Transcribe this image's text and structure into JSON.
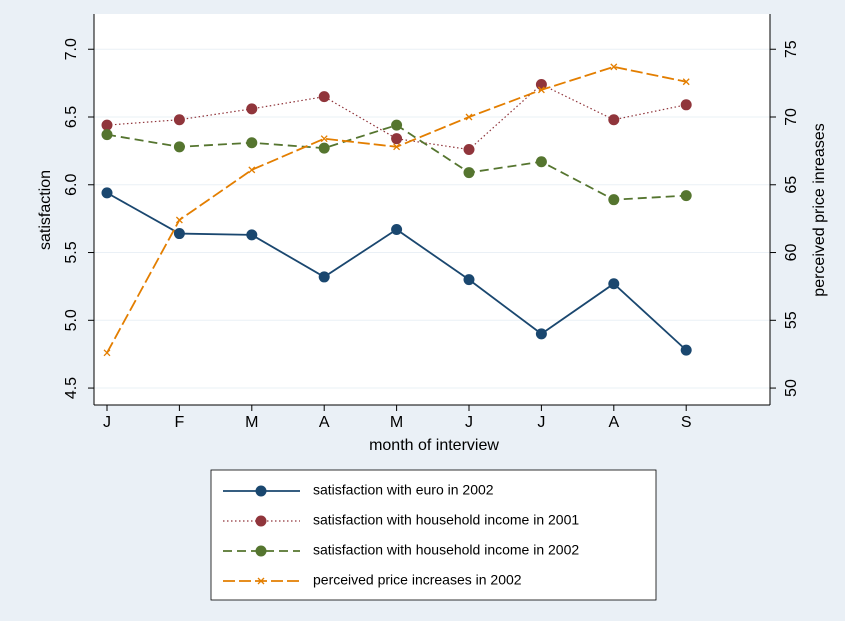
{
  "chart_data": {
    "type": "line",
    "xlabel": "month of interview",
    "ylabel": "satisfaction",
    "y2label": "perceived price inreases",
    "categories": [
      "J",
      "F",
      "M",
      "A",
      "M",
      "J",
      "J",
      "A",
      "S"
    ],
    "ylim": [
      4.375,
      7.26
    ],
    "yticks": [
      {
        "value": 4.5,
        "label": "4.5"
      },
      {
        "value": 5,
        "label": "5.0"
      },
      {
        "value": 5.5,
        "label": "5.5"
      },
      {
        "value": 6,
        "label": "6.0"
      },
      {
        "value": 6.5,
        "label": "6.5"
      },
      {
        "value": 7,
        "label": "7.0"
      }
    ],
    "y2lim": [
      48.75,
      77.6
    ],
    "y2ticks": [
      50,
      55,
      60,
      65,
      70,
      75
    ],
    "grid": true,
    "series": [
      {
        "name": "satisfaction with euro in 2002",
        "color": "#1a476f",
        "dash": "solid",
        "marker": "circle",
        "values": [
          5.94,
          5.64,
          5.63,
          5.32,
          5.67,
          5.3,
          4.9,
          5.27,
          4.78
        ]
      },
      {
        "name": "satisfaction with household income in 2001",
        "color": "#90353b",
        "dash": "dotted",
        "marker": "circle",
        "values": [
          6.44,
          6.48,
          6.56,
          6.65,
          6.34,
          6.26,
          6.74,
          6.48,
          6.59
        ]
      },
      {
        "name": "satisfaction with household income in 2002",
        "color": "#55752f",
        "dash": "dashed",
        "marker": "circle",
        "values": [
          6.37,
          6.28,
          6.31,
          6.27,
          6.44,
          6.09,
          6.17,
          5.89,
          5.92
        ]
      },
      {
        "name": "perceived price increases in 2002",
        "color": "#e37e00",
        "dash": "longdash",
        "marker": "x",
        "axis": "y2",
        "values": [
          52.6,
          62.4,
          66.1,
          68.4,
          67.8,
          70.0,
          72.0,
          73.7,
          72.6
        ]
      }
    ]
  }
}
